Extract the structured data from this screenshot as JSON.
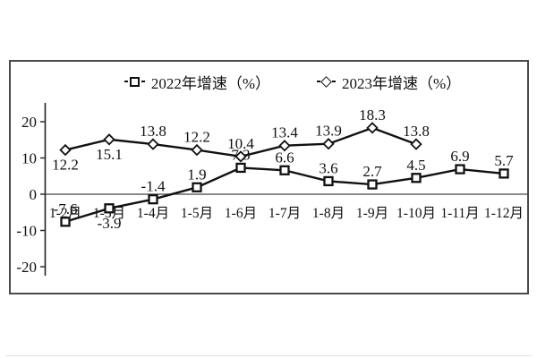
{
  "window": {
    "background": "#ffffff"
  },
  "legend": {
    "items": [
      {
        "label": "2022年增速（%）",
        "marker": "square"
      },
      {
        "label": "2023年增速（%）",
        "marker": "diamond"
      }
    ]
  },
  "chart_data": {
    "type": "line",
    "title": "",
    "categories": [
      "1-2月",
      "1-3月",
      "1-4月",
      "1-5月",
      "1-6月",
      "1-7月",
      "1-8月",
      "1-9月",
      "1-10月",
      "1-11月",
      "1-12月"
    ],
    "series": [
      {
        "name": "2022年增速（%）",
        "marker": "square",
        "color": "#111111",
        "values": [
          -7.6,
          -3.9,
          -1.4,
          1.9,
          7.3,
          6.6,
          3.6,
          2.7,
          4.5,
          6.9,
          5.7
        ],
        "labels": [
          "-7.6",
          "-3.9",
          "-1.4",
          "1.9",
          "7.3",
          "6.6",
          "3.6",
          "2.7",
          "4.5",
          "6.9",
          "5.7"
        ],
        "label_side": [
          "above",
          "below",
          "above",
          "above",
          "above",
          "above",
          "above",
          "above",
          "above",
          "above",
          "above"
        ]
      },
      {
        "name": "2023年增速（%）",
        "marker": "diamond",
        "color": "#111111",
        "values": [
          12.2,
          15.1,
          13.8,
          12.2,
          10.4,
          13.4,
          13.9,
          18.3,
          13.8
        ],
        "labels": [
          "12.2",
          "15.1",
          "13.8",
          "12.2",
          "10.4",
          "13.4",
          "13.9",
          "18.3",
          "13.8"
        ],
        "label_side": [
          "below",
          "below",
          "above",
          "above",
          "above",
          "above",
          "above",
          "above",
          "above"
        ]
      }
    ],
    "y_axis": {
      "ticks": [
        20,
        10,
        0,
        -10,
        -20
      ],
      "min": -25,
      "max": 25
    },
    "x_axis_label": "",
    "y_axis_label": "",
    "grid": false,
    "legend_position": "top",
    "axis_color": "#222222",
    "zero_line_color": "#444444",
    "text_color": "#111111"
  }
}
